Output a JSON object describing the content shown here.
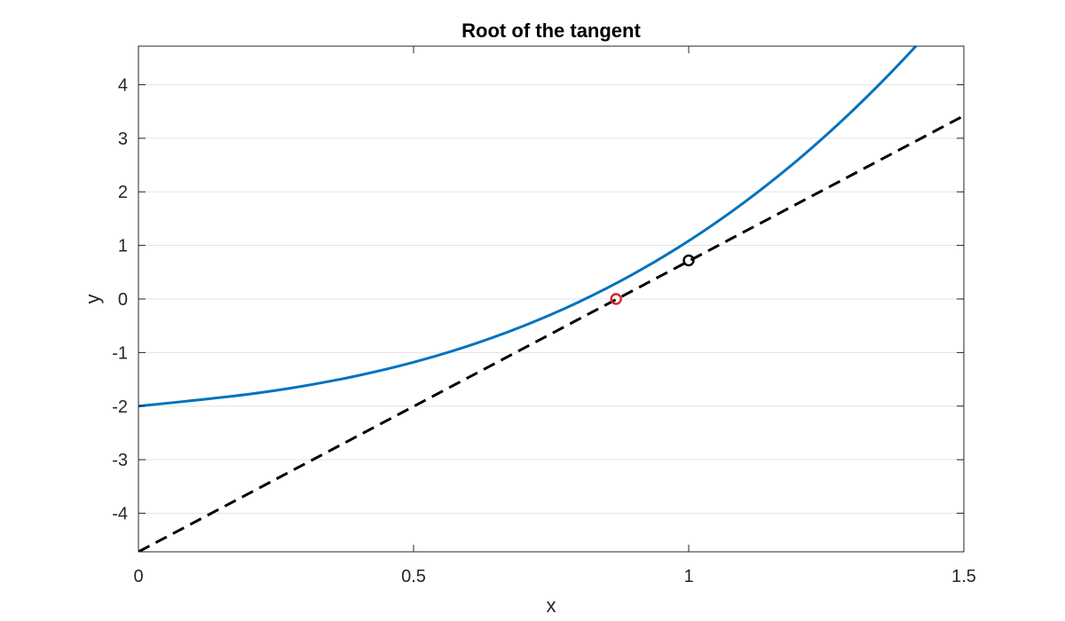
{
  "chart_data": {
    "type": "line",
    "title": "Root of the tangent",
    "xlabel": "x",
    "ylabel": "y",
    "xlim": [
      0,
      1.5
    ],
    "ylim": [
      -4.72,
      4.72
    ],
    "grid": "horizontal",
    "xticks": [
      0,
      0.5,
      1,
      1.5
    ],
    "xtick_labels": [
      "0",
      "0.5",
      "1",
      "1.5"
    ],
    "yticks": [
      -4,
      -3,
      -2,
      -1,
      0,
      1,
      2,
      3,
      4
    ],
    "ytick_labels": [
      "-4",
      "-3",
      "-2",
      "-1",
      "0",
      "1",
      "2",
      "3",
      "4"
    ],
    "series": [
      {
        "style": "solid",
        "color": "#0072BD",
        "x": [
          0,
          0.1,
          0.2,
          0.3,
          0.4,
          0.5,
          0.6,
          0.7,
          0.8,
          0.9,
          1.0,
          1.1,
          1.2,
          1.3,
          1.4,
          1.5
        ],
        "y": [
          -2.0,
          -1.895,
          -1.779,
          -1.625,
          -1.428,
          -1.181,
          -0.875,
          -0.503,
          -0.058,
          0.468,
          1.084,
          1.796,
          2.611,
          3.536,
          4.577,
          5.74
        ]
      },
      {
        "style": "dashed",
        "color": "#000000",
        "x": [
          0,
          1.5
        ],
        "y": [
          -4.72,
          3.42
        ]
      }
    ],
    "points": [
      {
        "x": 1.0,
        "y": 0.72,
        "color": "#000000"
      },
      {
        "x": 0.868,
        "y": 0.0,
        "color": "#D62728"
      }
    ]
  }
}
